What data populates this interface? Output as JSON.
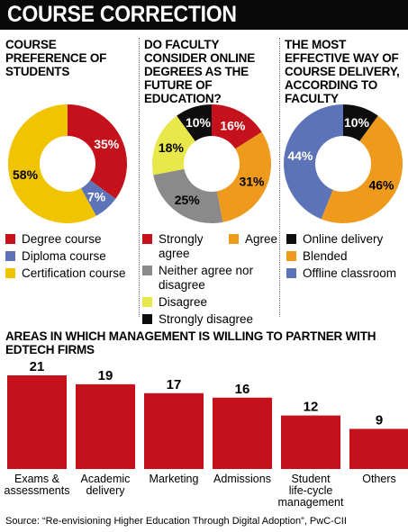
{
  "title": "COURSE CORRECTION",
  "colors": {
    "red": "#c5111c",
    "blue": "#5c73b7",
    "yellow": "#f0c400",
    "orange": "#ee9a1c",
    "gray": "#8a8a8a",
    "lime": "#e8e84a",
    "black": "#0d0d0d"
  },
  "panels": [
    {
      "heading": "Course preference of students"
    },
    {
      "heading": "Do faculty consider online degrees as the future of education?"
    },
    {
      "heading": "The most effective way of course delivery, according to faculty"
    }
  ],
  "bar_heading": "Areas in which management is willing to partner with edtech firms",
  "source": "Source: “Re-envisioning Higher Education Through Digital Adoption”, PwC-CII",
  "chart_data": [
    {
      "type": "pie",
      "title": "Course preference of students",
      "slices": [
        {
          "label": "Degree course",
          "value": 35,
          "text": "35%",
          "color": "#c5111c",
          "text_color": "#ffffff"
        },
        {
          "label": "Diploma course",
          "value": 7,
          "text": "7%",
          "color": "#5c73b7",
          "text_color": "#ffffff"
        },
        {
          "label": "Certification course",
          "value": 58,
          "text": "58%",
          "color": "#f0c400",
          "text_color": "#000000"
        }
      ]
    },
    {
      "type": "pie",
      "title": "Do faculty consider online degrees as the future of education?",
      "slices": [
        {
          "label": "Strongly agree",
          "value": 16,
          "text": "16%",
          "color": "#c5111c",
          "text_color": "#ffffff"
        },
        {
          "label": "Agree",
          "value": 31,
          "text": "31%",
          "color": "#ee9a1c",
          "text_color": "#000000"
        },
        {
          "label": "Neither agree nor disagree",
          "value": 25,
          "text": "25%",
          "color": "#8a8a8a",
          "text_color": "#000000"
        },
        {
          "label": "Disagree",
          "value": 18,
          "text": "18%",
          "color": "#e8e84a",
          "text_color": "#000000"
        },
        {
          "label": "Strongly disagree",
          "value": 10,
          "text": "10%",
          "color": "#0d0d0d",
          "text_color": "#ffffff"
        }
      ]
    },
    {
      "type": "pie",
      "title": "The most effective way of course delivery, according to faculty",
      "slices": [
        {
          "label": "Online delivery",
          "value": 10,
          "text": "10%",
          "color": "#0d0d0d",
          "text_color": "#ffffff"
        },
        {
          "label": "Blended",
          "value": 46,
          "text": "46%",
          "color": "#ee9a1c",
          "text_color": "#000000"
        },
        {
          "label": "Offline classroom",
          "value": 44,
          "text": "44%",
          "color": "#5c73b7",
          "text_color": "#ffffff"
        }
      ]
    },
    {
      "type": "bar",
      "title": "Areas in which management is willing to partner with edtech firms",
      "categories": [
        [
          "Exams &",
          "assessments"
        ],
        [
          "Academic",
          "delivery"
        ],
        [
          "Marketing"
        ],
        [
          "Admissions"
        ],
        [
          "Student",
          "life-cycle",
          "management"
        ],
        [
          "Others"
        ]
      ],
      "values": [
        21,
        19,
        17,
        16,
        12,
        9
      ],
      "color": "#c5111c",
      "ylim": [
        0,
        21
      ]
    }
  ]
}
